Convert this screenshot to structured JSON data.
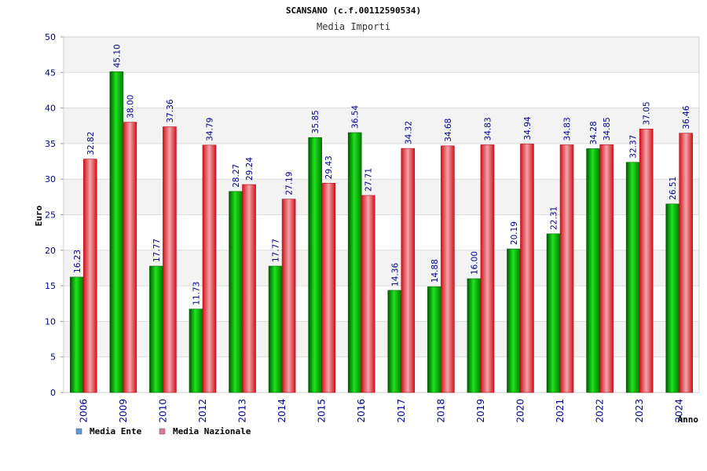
{
  "chart_data": {
    "type": "bar",
    "title": "SCANSANO (c.f.00112590534)",
    "subtitle": "Media Importi",
    "xlabel": "Anno",
    "ylabel": "Euro",
    "categories": [
      "2006",
      "2009",
      "2010",
      "2012",
      "2013",
      "2014",
      "2015",
      "2016",
      "2017",
      "2018",
      "2019",
      "2020",
      "2021",
      "2022",
      "2023",
      "2024"
    ],
    "series": [
      {
        "name": "Media Ente",
        "color": "#00b400",
        "legend_color": "#5b9bd5",
        "values": [
          16.23,
          45.1,
          17.77,
          11.73,
          28.27,
          17.77,
          35.85,
          36.54,
          14.36,
          14.88,
          16.0,
          20.19,
          22.31,
          34.28,
          32.37,
          26.51
        ]
      },
      {
        "name": "Media Nazionale",
        "color": "#e8232d",
        "legend_color": "#e07a9a",
        "values": [
          32.82,
          38.0,
          37.36,
          34.79,
          29.24,
          27.19,
          29.43,
          27.71,
          34.32,
          34.68,
          34.83,
          34.94,
          34.83,
          34.85,
          37.05,
          36.46
        ]
      }
    ],
    "ylim": [
      0,
      50
    ],
    "yticks": [
      0,
      5,
      10,
      15,
      20,
      25,
      30,
      35,
      40,
      45,
      50
    ],
    "grid": true,
    "legend": "bottom-left",
    "label_color": "#00008b"
  }
}
